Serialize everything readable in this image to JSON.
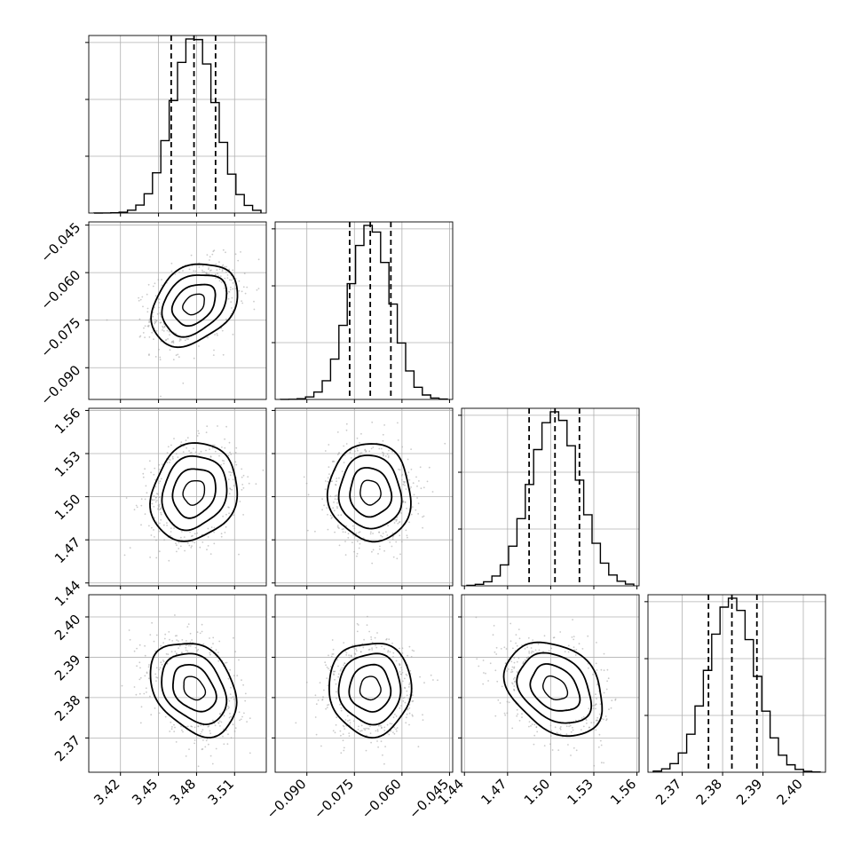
{
  "chart_data": {
    "type": "scatter",
    "kind": "corner-plot",
    "parameters": [
      {
        "index": 0,
        "range": [
          3.395,
          3.535
        ],
        "ticks": [
          3.42,
          3.45,
          3.48,
          3.51
        ],
        "tick_labels": [
          "3.42",
          "3.45",
          "3.48",
          "3.51"
        ],
        "quantiles": [
          3.46,
          3.478,
          3.495
        ],
        "mean": 3.478,
        "sd": 0.017
      },
      {
        "index": 1,
        "range": [
          -0.1,
          -0.044
        ],
        "ticks": [
          -0.09,
          -0.075,
          -0.06,
          -0.045
        ],
        "tick_labels": [
          "−0.090",
          "−0.075",
          "−0.060",
          "−0.045"
        ],
        "quantiles": [
          -0.0765,
          -0.07,
          -0.0635
        ],
        "mean": -0.07,
        "sd": 0.0065
      },
      {
        "index": 2,
        "range": [
          1.438,
          1.5615
        ],
        "ticks": [
          1.44,
          1.47,
          1.5,
          1.53,
          1.56
        ],
        "tick_labels": [
          "1.44",
          "1.47",
          "1.50",
          "1.53",
          "1.56"
        ],
        "quantiles": [
          1.485,
          1.503,
          1.52
        ],
        "mean": 1.503,
        "sd": 0.017
      },
      {
        "index": 3,
        "range": [
          2.3615,
          2.4055
        ],
        "ticks": [
          2.37,
          2.38,
          2.39,
          2.4
        ],
        "tick_labels": [
          "2.37",
          "2.38",
          "2.39",
          "2.40"
        ],
        "quantiles": [
          2.3765,
          2.3823,
          2.3885
        ],
        "mean": 2.3823,
        "sd": 0.0058
      }
    ],
    "correlations": [
      {
        "pair": [
          0,
          1
        ],
        "rho": 0.3
      },
      {
        "pair": [
          0,
          2
        ],
        "rho": 0.15
      },
      {
        "pair": [
          0,
          3
        ],
        "rho": -0.3
      },
      {
        "pair": [
          1,
          2
        ],
        "rho": -0.05
      },
      {
        "pair": [
          1,
          3
        ],
        "rho": 0.0
      },
      {
        "pair": [
          2,
          3
        ],
        "rho": -0.3
      }
    ],
    "contour_levels_sigma": [
      0.5,
      1.0,
      1.5,
      2.0
    ],
    "histogram_bins": 20,
    "grid": true,
    "colors": {
      "hist": "#000000",
      "contour": "#000000",
      "points": "#9e9e9e",
      "grid": "#b0b0b0"
    }
  }
}
